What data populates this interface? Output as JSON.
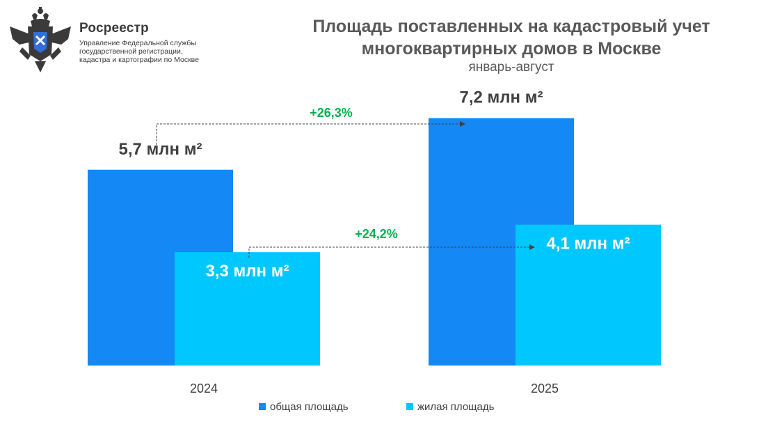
{
  "org": {
    "name": "Росреестр",
    "description": "Управление Федеральной службы государственной регистрации, кадастра и картографии по Москве"
  },
  "colors": {
    "total": "#1488f5",
    "living": "#00c8ff",
    "growth": "#00b050",
    "text": "#404040"
  },
  "chart_data": {
    "type": "bar",
    "title": "Площадь поставленных на кадастровый учет многоквартирных домов в Москве",
    "subtitle": "январь-август",
    "categories": [
      "2024",
      "2025"
    ],
    "series": [
      {
        "name": "общая площадь",
        "values": [
          5.7,
          7.2
        ],
        "labels": [
          "5,7 млн м²",
          "7,2 млн м²"
        ]
      },
      {
        "name": "жилая площадь",
        "values": [
          3.3,
          4.1
        ],
        "labels": [
          "3,3 млн м²",
          "4,1 млн м²"
        ]
      }
    ],
    "annotations": [
      {
        "series": "общая площадь",
        "text": "+26,3%"
      },
      {
        "series": "жилая площадь",
        "text": "+24,2%"
      }
    ],
    "unit": "млн м²",
    "ylim": [
      0,
      7.6
    ],
    "grid": false,
    "legend": "bottom"
  }
}
